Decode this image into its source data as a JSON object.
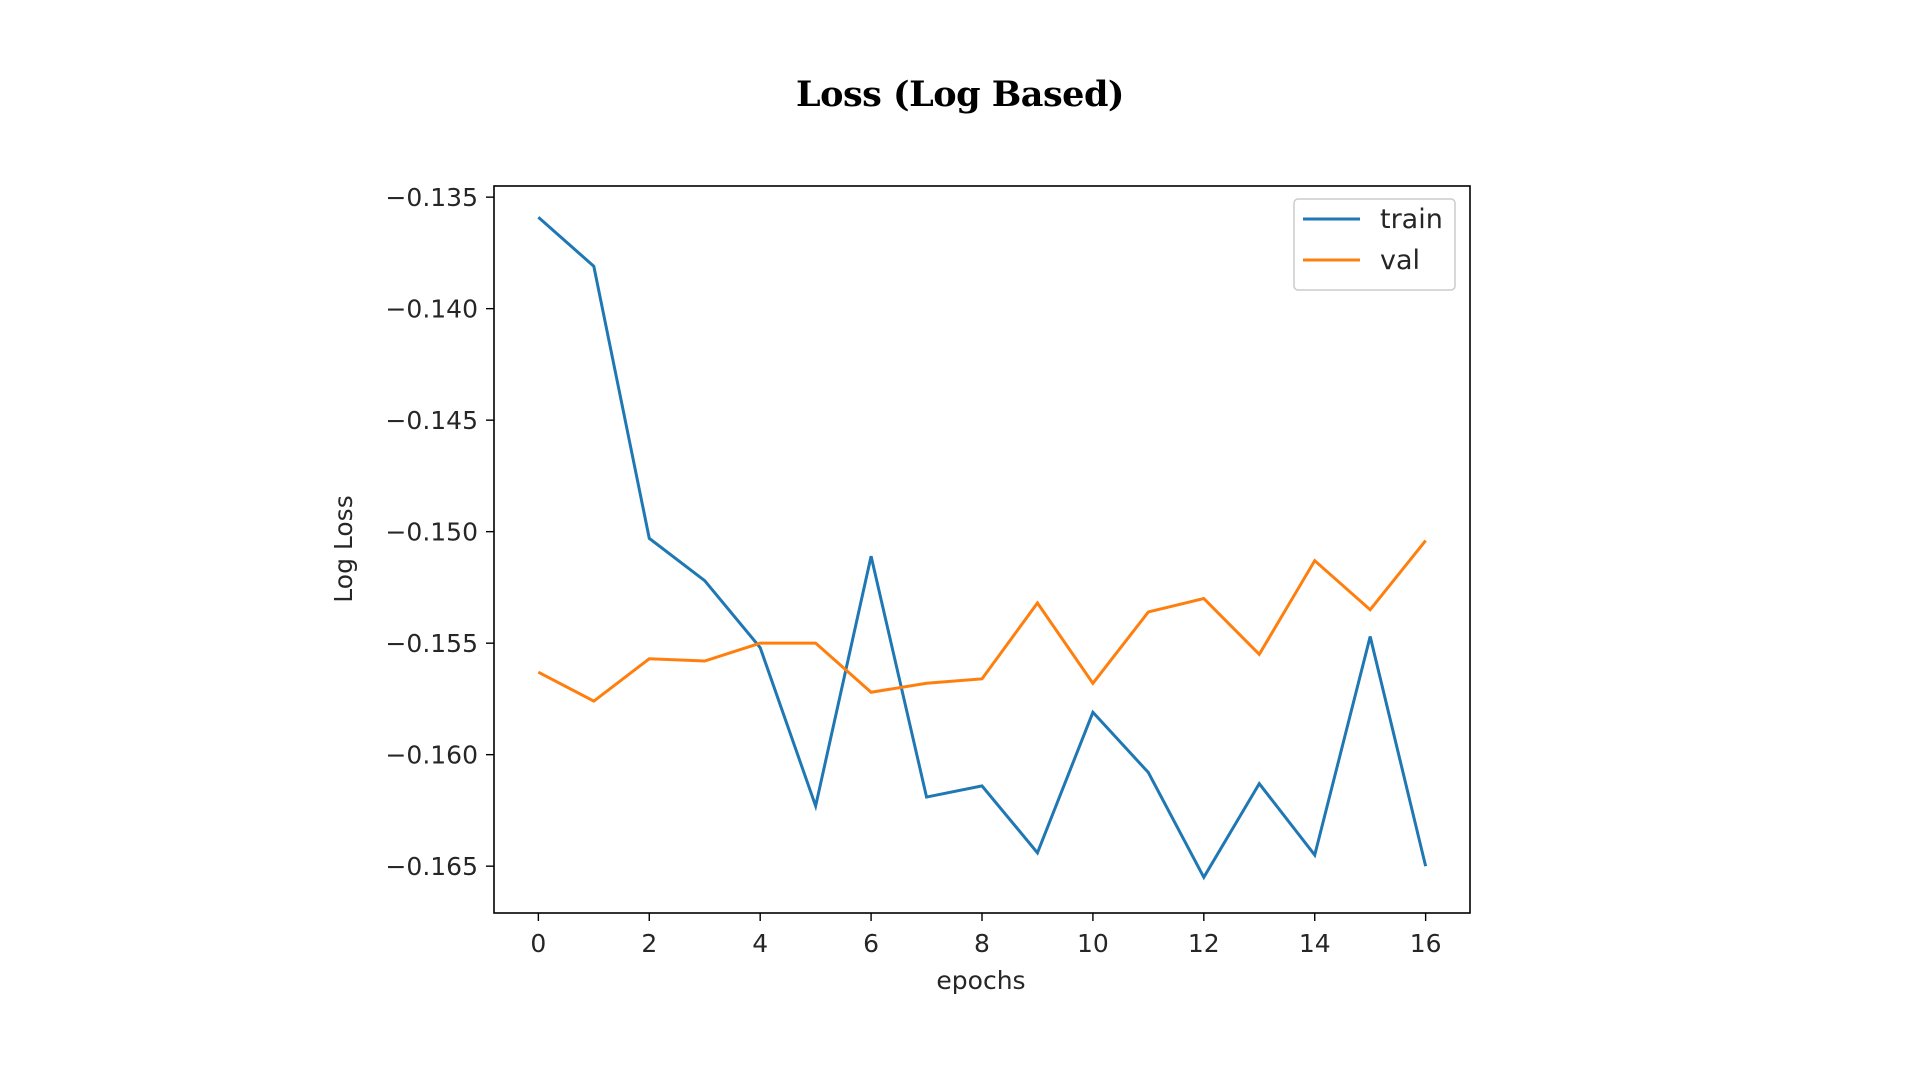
{
  "slide": {
    "title": "Loss (Log Based)"
  },
  "chart_data": {
    "type": "line",
    "title": "Loss (Log Based)",
    "xlabel": "epochs",
    "ylabel": "Log Loss",
    "xlim": [
      -0.8,
      16.8
    ],
    "ylim": [
      -0.1671,
      -0.1345
    ],
    "x_ticks": [
      0,
      2,
      4,
      6,
      8,
      10,
      12,
      14,
      16
    ],
    "x_tick_labels": [
      "0",
      "2",
      "4",
      "6",
      "8",
      "10",
      "12",
      "14",
      "16"
    ],
    "y_ticks": [
      -0.135,
      -0.14,
      -0.145,
      -0.15,
      -0.155,
      -0.16,
      -0.165
    ],
    "y_tick_labels": [
      "−0.135",
      "−0.140",
      "−0.145",
      "−0.150",
      "−0.155",
      "−0.160",
      "−0.165"
    ],
    "grid": false,
    "legend_position": "top-right",
    "x": [
      0,
      1,
      2,
      3,
      4,
      5,
      6,
      7,
      8,
      9,
      10,
      11,
      12,
      13,
      14,
      15,
      16
    ],
    "series": [
      {
        "name": "train",
        "color": "#1f77b4",
        "values": [
          -0.1359,
          -0.1381,
          -0.1503,
          -0.1522,
          -0.1552,
          -0.1623,
          -0.1511,
          -0.1619,
          -0.1614,
          -0.1644,
          -0.1581,
          -0.1608,
          -0.1655,
          -0.1613,
          -0.1645,
          -0.1547,
          -0.165
        ]
      },
      {
        "name": "val",
        "color": "#ff7f0e",
        "values": [
          -0.1563,
          -0.1576,
          -0.1557,
          -0.1558,
          -0.155,
          -0.155,
          -0.1572,
          -0.1568,
          -0.1566,
          -0.1532,
          -0.1568,
          -0.1536,
          -0.153,
          -0.1555,
          -0.1513,
          -0.1535,
          -0.1504
        ]
      }
    ]
  }
}
